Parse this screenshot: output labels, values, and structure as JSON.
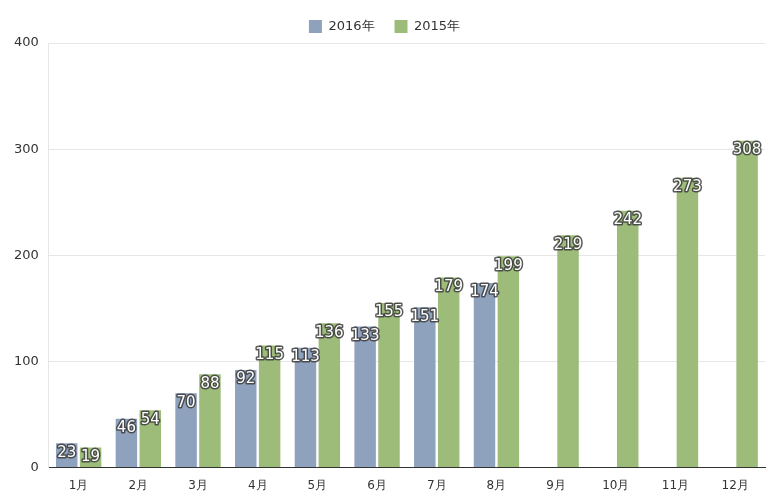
{
  "chart_data": {
    "type": "bar",
    "categories": [
      "1月",
      "2月",
      "3月",
      "4月",
      "5月",
      "6月",
      "7月",
      "8月",
      "9月",
      "10月",
      "11月",
      "12月"
    ],
    "series": [
      {
        "name": "2016年",
        "color": "#8fa2bd",
        "values": [
          23,
          46,
          70,
          92,
          113,
          133,
          151,
          174,
          null,
          null,
          null,
          null
        ]
      },
      {
        "name": "2015年",
        "color": "#9dbc79",
        "values": [
          19,
          54,
          88,
          115,
          136,
          155,
          179,
          199,
          219,
          242,
          273,
          308
        ]
      }
    ],
    "ylim": [
      0,
      400
    ],
    "yticks": [
      0,
      100,
      200,
      300,
      400
    ],
    "grid": true,
    "legend": "top",
    "data_labels": true
  }
}
